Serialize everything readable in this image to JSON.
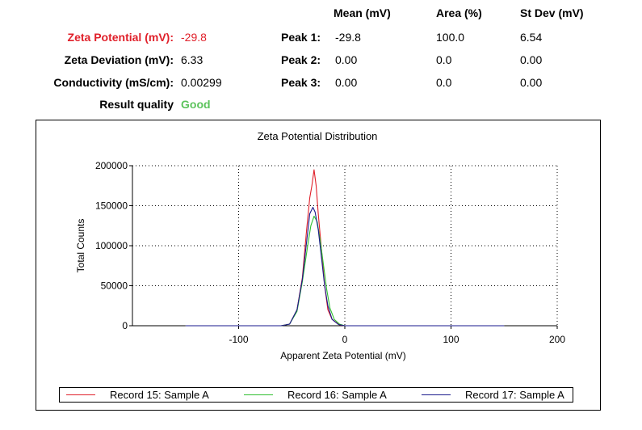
{
  "summary": {
    "zeta_potential_label": "Zeta Potential (mV):",
    "zeta_potential_value": "-29.8",
    "zeta_deviation_label": "Zeta Deviation (mV):",
    "zeta_deviation_value": "6.33",
    "conductivity_label": "Conductivity (mS/cm):",
    "conductivity_value": "0.00299",
    "result_quality_label": "Result quality",
    "result_quality_value": "Good"
  },
  "peaks": {
    "headers": {
      "mean": "Mean (mV)",
      "area": "Area (%)",
      "stdev": "St Dev (mV)"
    },
    "rows": [
      {
        "label": "Peak 1:",
        "mean": "-29.8",
        "area": "100.0",
        "stdev": "6.54"
      },
      {
        "label": "Peak 2:",
        "mean": "0.00",
        "area": "0.0",
        "stdev": "0.00"
      },
      {
        "label": "Peak 3:",
        "mean": "0.00",
        "area": "0.0",
        "stdev": "0.00"
      }
    ]
  },
  "colors": {
    "red": "#e0202a",
    "good": "#5cc35c",
    "series": [
      "#e0202a",
      "#2fbf2f",
      "#1a1a8c"
    ]
  },
  "chart_data": {
    "type": "line",
    "title": "Zeta Potential Distribution",
    "xlabel": "Apparent Zeta Potential (mV)",
    "ylabel": "Total Counts",
    "xlim": [
      -200,
      200
    ],
    "ylim": [
      0,
      200000
    ],
    "xticks": [
      -100,
      0,
      100,
      200
    ],
    "xtick_labels": [
      "-100",
      "0",
      "100",
      "200"
    ],
    "yticks": [
      0,
      50000,
      100000,
      150000,
      200000
    ],
    "ytick_labels": [
      "0",
      "50000",
      "100000",
      "150000",
      "200000"
    ],
    "grid": true,
    "legend": "bottom",
    "series": [
      {
        "name": "Record 15: Sample A",
        "color": "#e0202a",
        "x": [
          -150,
          -60,
          -52,
          -45,
          -40,
          -36,
          -33,
          -31,
          -29,
          -27,
          -25,
          -22,
          -19,
          -16,
          -12,
          -5,
          0,
          150
        ],
        "y": [
          0,
          0,
          2000,
          20000,
          60000,
          120000,
          160000,
          175000,
          195000,
          175000,
          140000,
          95000,
          50000,
          20000,
          8000,
          1000,
          0,
          0
        ]
      },
      {
        "name": "Record 16: Sample A",
        "color": "#2fbf2f",
        "x": [
          -150,
          -60,
          -52,
          -45,
          -40,
          -35,
          -32,
          -29,
          -26,
          -23,
          -20,
          -17,
          -14,
          -10,
          -5,
          0,
          150
        ],
        "y": [
          0,
          0,
          2000,
          18000,
          55000,
          100000,
          125000,
          137000,
          130000,
          105000,
          75000,
          45000,
          22000,
          8000,
          2000,
          0,
          0
        ]
      },
      {
        "name": "Record 17: Sample A",
        "color": "#1a1a8c",
        "x": [
          -150,
          -60,
          -52,
          -45,
          -40,
          -36,
          -33,
          -30,
          -28,
          -25,
          -22,
          -19,
          -16,
          -12,
          -6,
          0,
          150
        ],
        "y": [
          0,
          0,
          2000,
          20000,
          58000,
          105000,
          140000,
          148000,
          142000,
          120000,
          85000,
          50000,
          25000,
          8000,
          1500,
          0,
          0
        ]
      }
    ]
  }
}
